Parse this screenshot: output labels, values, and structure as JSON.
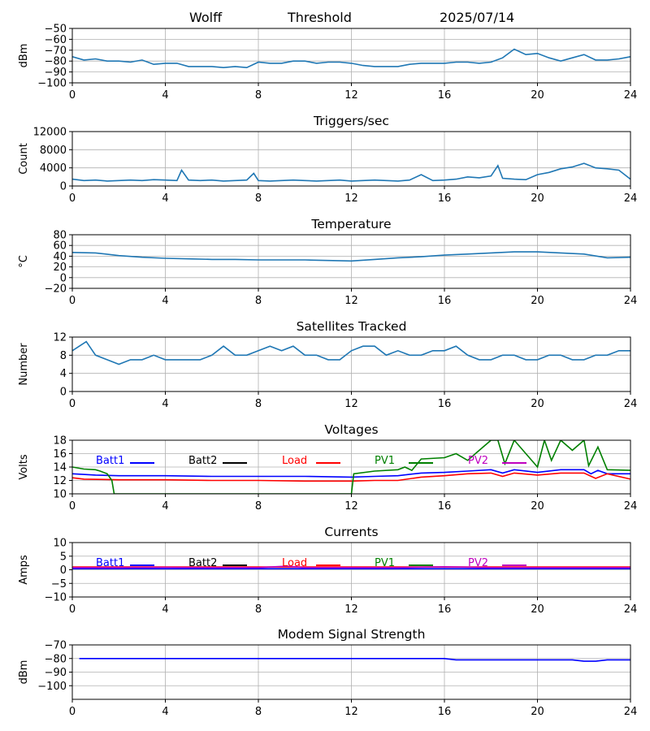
{
  "header": {
    "station": "Wolff",
    "mode": "Threshold",
    "date": "2025/07/14"
  },
  "colors": {
    "default": "#1f77b4",
    "blue": "#0000ff",
    "black": "#000000",
    "red": "#ff0000",
    "green": "#008000",
    "magenta": "#bf00bf",
    "grid": "#b0b0b0"
  },
  "chart_data": [
    {
      "type": "line",
      "title": "",
      "ylabel": "dBm",
      "xlim": [
        0,
        24
      ],
      "ylim": [
        -100,
        -50
      ],
      "grid": true,
      "xticks": [
        "0",
        "4",
        "8",
        "12",
        "16",
        "20",
        "24"
      ],
      "yticks": [
        "−50",
        "−60",
        "−70",
        "−80",
        "−90",
        "−100"
      ],
      "ytick_values": [
        -50,
        -60,
        -70,
        -80,
        -90,
        -100
      ],
      "series": [
        {
          "color": "#1f77b4",
          "x": [
            0,
            0.5,
            1,
            1.5,
            2,
            2.5,
            3,
            3.5,
            4,
            4.5,
            5,
            5.5,
            6,
            6.5,
            7,
            7.5,
            8,
            8.5,
            9,
            9.5,
            10,
            10.5,
            11,
            11.5,
            12,
            12.5,
            13,
            13.5,
            14,
            14.5,
            15,
            15.5,
            16,
            16.5,
            17,
            17.5,
            18,
            18.5,
            19,
            19.5,
            20,
            20.5,
            21,
            21.5,
            22,
            22.5,
            23,
            23.5,
            24
          ],
          "y": [
            -76,
            -79,
            -78,
            -80,
            -80,
            -81,
            -79,
            -83,
            -82,
            -82,
            -85,
            -85,
            -85,
            -86,
            -85,
            -86,
            -81,
            -82,
            -82,
            -80,
            -80,
            -82,
            -81,
            -81,
            -82,
            -84,
            -85,
            -85,
            -85,
            -83,
            -82,
            -82,
            -82,
            -81,
            -81,
            -82,
            -81,
            -77,
            -69,
            -74,
            -73,
            -77,
            -80,
            -77,
            -74,
            -79,
            -79,
            -78,
            -76
          ]
        }
      ]
    },
    {
      "type": "line",
      "title": "Triggers/sec",
      "ylabel": "Count",
      "xlim": [
        0,
        24
      ],
      "ylim": [
        0,
        12000
      ],
      "grid": true,
      "xticks": [
        "0",
        "4",
        "8",
        "12",
        "16",
        "20",
        "24"
      ],
      "yticks": [
        "0",
        "4000",
        "8000",
        "12000"
      ],
      "ytick_values": [
        0,
        4000,
        8000,
        12000
      ],
      "series": [
        {
          "color": "#1f77b4",
          "x": [
            0,
            0.5,
            1,
            1.5,
            2,
            2.5,
            3,
            3.5,
            4,
            4.5,
            4.7,
            5,
            5.5,
            6,
            6.5,
            7,
            7.5,
            7.8,
            8,
            8.5,
            9,
            9.5,
            10,
            10.5,
            11,
            11.5,
            12,
            12.5,
            13,
            13.5,
            14,
            14.5,
            15,
            15.5,
            16,
            16.5,
            17,
            17.5,
            18,
            18.3,
            18.5,
            19,
            19.5,
            20,
            20.5,
            21,
            21.5,
            22,
            22.5,
            23,
            23.5,
            24
          ],
          "y": [
            1500,
            1200,
            1300,
            1100,
            1200,
            1300,
            1200,
            1400,
            1300,
            1200,
            3500,
            1300,
            1200,
            1300,
            1100,
            1200,
            1300,
            2800,
            1200,
            1100,
            1200,
            1300,
            1200,
            1100,
            1200,
            1300,
            1100,
            1200,
            1300,
            1200,
            1100,
            1300,
            2500,
            1200,
            1300,
            1500,
            2000,
            1800,
            2200,
            4500,
            1700,
            1500,
            1400,
            2500,
            3000,
            3800,
            4200,
            5000,
            4000,
            3800,
            3500,
            1500
          ]
        }
      ]
    },
    {
      "type": "line",
      "title": "Temperature",
      "ylabel": "°C",
      "xlim": [
        0,
        24
      ],
      "ylim": [
        -20,
        80
      ],
      "grid": true,
      "xticks": [
        "0",
        "4",
        "8",
        "12",
        "16",
        "20",
        "24"
      ],
      "yticks": [
        "80",
        "60",
        "40",
        "20",
        "0",
        "−20"
      ],
      "ytick_values": [
        80,
        60,
        40,
        20,
        0,
        -20
      ],
      "series": [
        {
          "color": "#1f77b4",
          "x": [
            0,
            1,
            2,
            3,
            4,
            5,
            6,
            7,
            8,
            9,
            10,
            11,
            12,
            13,
            14,
            15,
            16,
            17,
            18,
            19,
            20,
            21,
            22,
            23,
            24
          ],
          "y": [
            47,
            46,
            41,
            38,
            36,
            35,
            34,
            34,
            33,
            33,
            33,
            32,
            31,
            34,
            37,
            39,
            42,
            44,
            46,
            48,
            48,
            46,
            44,
            37,
            38
          ]
        }
      ]
    },
    {
      "type": "line",
      "title": "Satellites Tracked",
      "ylabel": "Number",
      "xlim": [
        0,
        24
      ],
      "ylim": [
        0,
        12
      ],
      "grid": true,
      "xticks": [
        "0",
        "4",
        "8",
        "12",
        "16",
        "20",
        "24"
      ],
      "yticks": [
        "0",
        "4",
        "8",
        "12"
      ],
      "ytick_values": [
        0,
        4,
        8,
        12
      ],
      "series": [
        {
          "color": "#1f77b4",
          "x": [
            0,
            0.3,
            0.6,
            1,
            1.5,
            2,
            2.5,
            3,
            3.5,
            4,
            4.5,
            5,
            5.5,
            6,
            6.5,
            7,
            7.5,
            8,
            8.5,
            9,
            9.5,
            10,
            10.5,
            11,
            11.5,
            12,
            12.5,
            13,
            13.5,
            14,
            14.5,
            15,
            15.5,
            16,
            16.5,
            17,
            17.5,
            18,
            18.5,
            19,
            19.5,
            20,
            20.5,
            21,
            21.5,
            22,
            22.5,
            23,
            23.5,
            24
          ],
          "y": [
            9,
            10,
            11,
            8,
            7,
            6,
            7,
            7,
            8,
            7,
            7,
            7,
            7,
            8,
            10,
            8,
            8,
            9,
            10,
            9,
            10,
            8,
            8,
            7,
            7,
            9,
            10,
            10,
            8,
            9,
            8,
            8,
            9,
            9,
            10,
            8,
            7,
            7,
            8,
            8,
            7,
            7,
            8,
            8,
            7,
            7,
            8,
            8,
            9,
            9
          ]
        }
      ]
    },
    {
      "type": "line",
      "title": "Voltages",
      "ylabel": "Volts",
      "xlim": [
        0,
        24
      ],
      "ylim": [
        10,
        18
      ],
      "grid": true,
      "xticks": [
        "0",
        "4",
        "8",
        "12",
        "16",
        "20",
        "24"
      ],
      "yticks": [
        "10",
        "12",
        "14",
        "16",
        "18"
      ],
      "ytick_values": [
        10,
        12,
        14,
        16,
        18
      ],
      "legend": "top",
      "series": [
        {
          "name": "Batt1",
          "color": "#0000ff",
          "x": [
            0,
            1,
            2,
            4,
            6,
            8,
            10,
            12,
            13,
            14,
            15,
            16,
            17,
            18,
            18.5,
            19,
            20,
            21,
            22,
            22.3,
            22.6,
            23,
            24
          ],
          "y": [
            13.0,
            12.8,
            12.7,
            12.7,
            12.6,
            12.6,
            12.6,
            12.5,
            12.6,
            12.7,
            13.1,
            13.2,
            13.4,
            13.6,
            13.1,
            13.6,
            13.2,
            13.6,
            13.6,
            13.0,
            13.5,
            13.0,
            13.0
          ]
        },
        {
          "name": "Batt2",
          "color": "#000000",
          "x": [],
          "y": []
        },
        {
          "name": "Load",
          "color": "#ff0000",
          "x": [
            0,
            0.5,
            2,
            4,
            6,
            8,
            10,
            12,
            13,
            14,
            15,
            16,
            17,
            18,
            18.5,
            19,
            20,
            21,
            22,
            22.5,
            23,
            24
          ],
          "y": [
            12.4,
            12.2,
            12.1,
            12.1,
            12.0,
            12.0,
            11.9,
            11.9,
            12.0,
            12.0,
            12.5,
            12.7,
            13.0,
            13.1,
            12.6,
            13.1,
            12.8,
            13.1,
            13.1,
            12.3,
            13.0,
            12.2
          ]
        },
        {
          "name": "PV1",
          "color": "#008000",
          "x": [
            0,
            0.5,
            1,
            1.2,
            1.5,
            1.7,
            1.8,
            12,
            12.1,
            13,
            14,
            14.3,
            14.6,
            15,
            16,
            16.5,
            17,
            17.5,
            18,
            18.3,
            18.6,
            19,
            20,
            20.3,
            20.6,
            21,
            21.5,
            22,
            22.2,
            22.6,
            23,
            24
          ],
          "y": [
            14.0,
            13.7,
            13.6,
            13.4,
            13.0,
            12.0,
            10.0,
            10.0,
            13.0,
            13.4,
            13.6,
            14.0,
            13.5,
            15.2,
            15.4,
            16.0,
            15.0,
            16.5,
            18.0,
            18.0,
            14.5,
            18.0,
            14.0,
            18.0,
            15.0,
            18.0,
            16.5,
            18.0,
            14.2,
            17.0,
            13.6,
            13.5
          ]
        },
        {
          "name": "PV2",
          "color": "#bf00bf",
          "x": [],
          "y": []
        }
      ]
    },
    {
      "type": "line",
      "title": "Currents",
      "ylabel": "Amps",
      "xlim": [
        0,
        24
      ],
      "ylim": [
        -10,
        10
      ],
      "grid": true,
      "xticks": [
        "0",
        "4",
        "8",
        "12",
        "16",
        "20",
        "24"
      ],
      "yticks": [
        "10",
        "5",
        "0",
        "−5",
        "−10"
      ],
      "ytick_values": [
        10,
        5,
        0,
        -5,
        -10
      ],
      "legend": "top",
      "series": [
        {
          "name": "Batt1",
          "color": "#0000ff",
          "x": [
            0,
            4,
            8,
            12,
            16,
            20,
            24
          ],
          "y": [
            0.4,
            0.4,
            0.4,
            0.4,
            0.4,
            0.4,
            0.4
          ]
        },
        {
          "name": "Batt2",
          "color": "#000000",
          "x": [],
          "y": []
        },
        {
          "name": "Load",
          "color": "#ff0000",
          "x": [
            0,
            4,
            8,
            12,
            16,
            20,
            24
          ],
          "y": [
            1.0,
            1.0,
            1.0,
            1.0,
            1.0,
            1.0,
            1.0
          ]
        },
        {
          "name": "PV1",
          "color": "#008000",
          "x": [],
          "y": []
        },
        {
          "name": "PV2",
          "color": "#bf00bf",
          "x": [
            0,
            2,
            4,
            6,
            8,
            9.2,
            10,
            12,
            14,
            16,
            18,
            20,
            22,
            24
          ],
          "y": [
            0.8,
            0.8,
            0.9,
            0.8,
            0.8,
            1.3,
            0.8,
            0.8,
            0.8,
            1.1,
            0.8,
            0.8,
            0.8,
            0.8
          ]
        }
      ]
    },
    {
      "type": "line",
      "title": "Modem Signal Strength",
      "ylabel": "dBm",
      "xlim": [
        0,
        24
      ],
      "ylim": [
        -110,
        -70
      ],
      "grid": true,
      "xticks": [
        "0",
        "4",
        "8",
        "12",
        "16",
        "20",
        "24"
      ],
      "yticks": [
        "−70",
        "−80",
        "−90",
        "−100"
      ],
      "ytick_values": [
        -70,
        -80,
        -90,
        -100
      ],
      "series": [
        {
          "color": "#0000ff",
          "x": [
            0.3,
            4,
            8,
            12,
            16,
            16.5,
            20,
            21.5,
            22,
            22.5,
            23,
            24
          ],
          "y": [
            -80,
            -80,
            -80,
            -80,
            -80,
            -81,
            -81,
            -81,
            -82,
            -82,
            -81,
            -81
          ]
        }
      ]
    }
  ]
}
